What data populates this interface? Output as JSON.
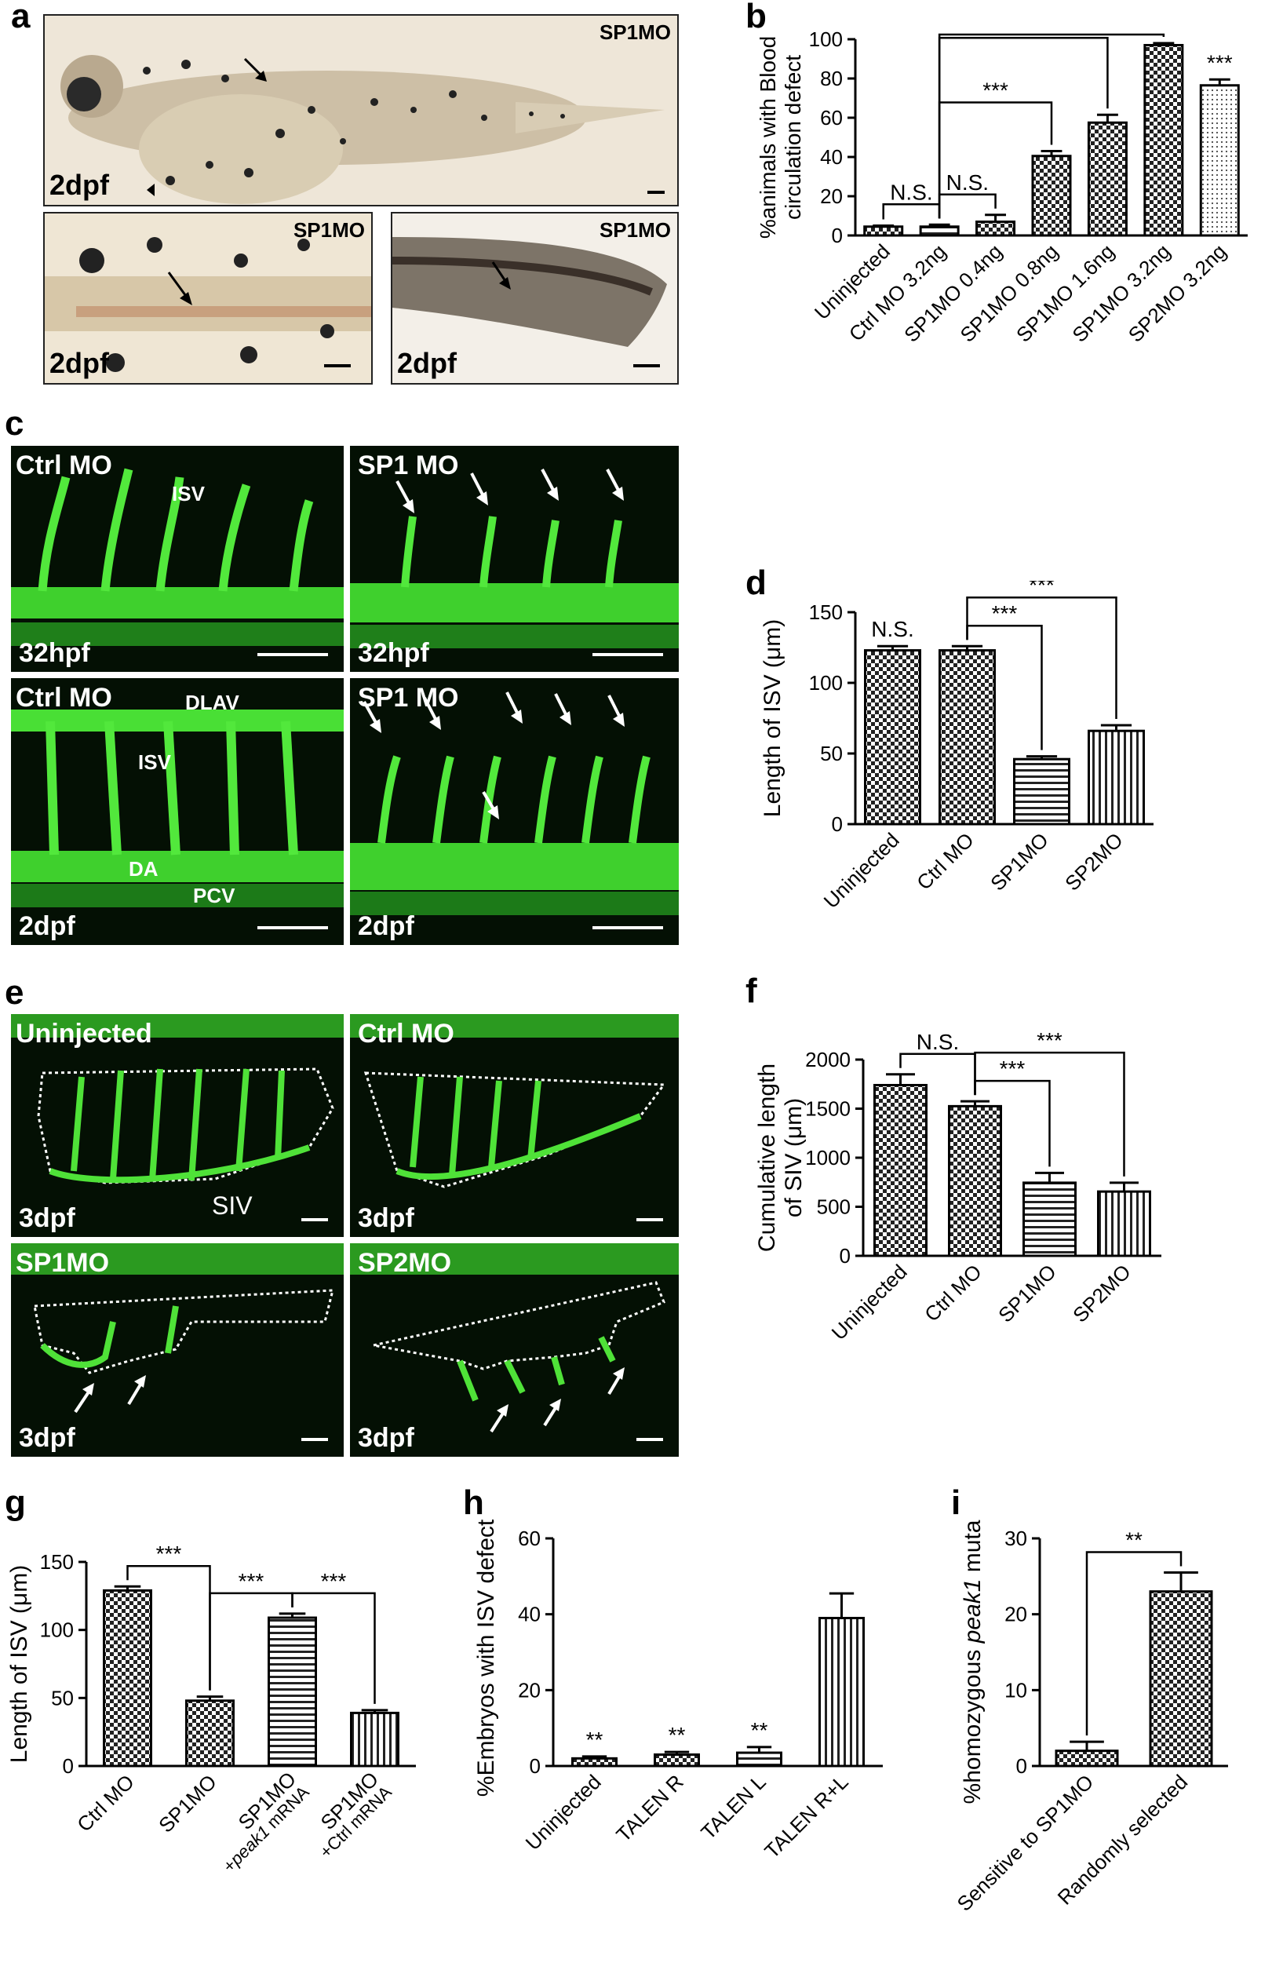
{
  "panel_labels": {
    "a": "a",
    "b": "b",
    "c": "c",
    "d": "d",
    "e": "e",
    "f": "f",
    "g": "g",
    "h": "h",
    "i": "i"
  },
  "images": {
    "a_main": {
      "tag": "SP1MO",
      "stage": "2dpf"
    },
    "a_left": {
      "tag": "SP1MO",
      "stage": "2dpf"
    },
    "a_right": {
      "tag": "SP1MO",
      "stage": "2dpf"
    },
    "c_tl": {
      "tag": "Ctrl MO",
      "stage": "32hpf",
      "annotations": [
        "ISV"
      ]
    },
    "c_tr": {
      "tag": "SP1 MO",
      "stage": "32hpf"
    },
    "c_bl": {
      "tag": "Ctrl MO",
      "stage": "2dpf",
      "annotations": [
        "DLAV",
        "ISV",
        "DA",
        "PCV"
      ]
    },
    "c_br": {
      "tag": "SP1 MO",
      "stage": "2dpf"
    },
    "e_tl": {
      "tag": "Uninjected",
      "stage": "3dpf",
      "annotations": [
        "SIV"
      ]
    },
    "e_tr": {
      "tag": "Ctrl MO",
      "stage": "3dpf"
    },
    "e_bl": {
      "tag": "SP1MO",
      "stage": "3dpf"
    },
    "e_br": {
      "tag": "SP2MO",
      "stage": "3dpf"
    }
  },
  "chart_data": [
    {
      "id": "b",
      "type": "bar",
      "ylabel": "%animals with Blood circulation defect",
      "ylim": [
        0,
        100
      ],
      "yticks": [
        0,
        20,
        40,
        60,
        80,
        100
      ],
      "categories": [
        "Uninjected",
        "Ctrl MO 3.2ng",
        "SP1MO 0.4ng",
        "SP1MO 0.8ng",
        "SP1MO 1.6ng",
        "SP1MO 3.2ng",
        "SP2MO 3.2ng"
      ],
      "values": [
        4.5,
        4.5,
        7,
        40.5,
        57.5,
        97,
        76.5
      ],
      "errors": [
        0.5,
        1,
        3.5,
        2.5,
        4,
        1,
        3
      ],
      "patterns": [
        "checker",
        "lines-h",
        "checker",
        "checker",
        "checker",
        "checker",
        "dots"
      ],
      "annotations": [
        {
          "type": "bracket",
          "from": 0,
          "to": 1,
          "label": "N.S."
        },
        {
          "type": "bracket",
          "from": 1,
          "to": 2,
          "label": "N.S."
        },
        {
          "type": "bracket",
          "from": 1,
          "to": 3,
          "label": "***"
        },
        {
          "type": "bracket",
          "from": 1,
          "to": 4,
          "label": "***"
        },
        {
          "type": "bracket",
          "from": 1,
          "to": 5,
          "label": "***"
        },
        {
          "type": "star",
          "at": 6,
          "label": "***"
        }
      ]
    },
    {
      "id": "d",
      "type": "bar",
      "ylabel": "Length of ISV (μm)",
      "ylim": [
        0,
        150
      ],
      "yticks": [
        0,
        50,
        100,
        150
      ],
      "categories": [
        "Uninjected",
        "Ctrl MO",
        "SP1MO",
        "SP2MO"
      ],
      "values": [
        123,
        123,
        46,
        66
      ],
      "errors": [
        3,
        3,
        2,
        4
      ],
      "patterns": [
        "checker",
        "checker",
        "lines-h",
        "lines-v"
      ],
      "annotations": [
        {
          "type": "star",
          "at": 0,
          "label": "N.S."
        },
        {
          "type": "bracket",
          "from": 1,
          "to": 2,
          "label": "***"
        },
        {
          "type": "bracket",
          "from": 1,
          "to": 3,
          "label": "***"
        }
      ]
    },
    {
      "id": "f",
      "type": "bar",
      "ylabel": "Cumulative length of SIV (μm)",
      "ylim": [
        0,
        2000
      ],
      "yticks": [
        0,
        500,
        1000,
        1500,
        2000
      ],
      "categories": [
        "Uninjected",
        "Ctrl MO",
        "SP1MO",
        "SP2MO"
      ],
      "values": [
        1740,
        1525,
        745,
        655
      ],
      "errors": [
        110,
        50,
        100,
        90
      ],
      "patterns": [
        "checker",
        "checker",
        "lines-h",
        "lines-v"
      ],
      "annotations": [
        {
          "type": "bracket",
          "from": 0,
          "to": 1,
          "label": "N.S."
        },
        {
          "type": "bracket",
          "from": 1,
          "to": 2,
          "label": "***"
        },
        {
          "type": "bracket",
          "from": 1,
          "to": 3,
          "label": "***"
        }
      ]
    },
    {
      "id": "g",
      "type": "bar",
      "ylabel": "Length of ISV (μm)",
      "ylim": [
        0,
        150
      ],
      "yticks": [
        0,
        50,
        100,
        150
      ],
      "categories": [
        "Ctrl MO",
        "SP1MO",
        "SP1MO +peak1 mRNA",
        "SP1MO +Ctrl mRNA"
      ],
      "values": [
        129,
        48,
        109,
        39
      ],
      "errors": [
        3,
        3,
        3,
        2
      ],
      "patterns": [
        "checker",
        "checker",
        "lines-h",
        "lines-v"
      ],
      "annotations": [
        {
          "type": "bracket",
          "from": 0,
          "to": 1,
          "label": "***"
        },
        {
          "type": "bracket",
          "from": 1,
          "to": 2,
          "label": "***"
        },
        {
          "type": "bracket",
          "from": 2,
          "to": 3,
          "label": "***"
        }
      ]
    },
    {
      "id": "h",
      "type": "bar",
      "ylabel": "%Embryos with ISV defects",
      "ylim": [
        0,
        60
      ],
      "yticks": [
        0,
        20,
        40,
        60
      ],
      "categories": [
        "Uninjected",
        "TALEN R",
        "TALEN L",
        "TALEN R+L"
      ],
      "values": [
        2,
        3,
        3.5,
        39
      ],
      "errors": [
        0.5,
        0.7,
        1.5,
        6.5
      ],
      "patterns": [
        "checker",
        "checker",
        "lines-h",
        "lines-v"
      ],
      "annotations": [
        {
          "type": "star",
          "at": 0,
          "label": "**"
        },
        {
          "type": "star",
          "at": 1,
          "label": "**"
        },
        {
          "type": "star",
          "at": 2,
          "label": "**"
        }
      ]
    },
    {
      "id": "i",
      "type": "bar",
      "ylabel": "%homozygous peak1 mutant",
      "ylim": [
        0,
        30
      ],
      "yticks": [
        0,
        10,
        20,
        30
      ],
      "categories": [
        "Sensitive to SP1MO",
        "Randomly selected"
      ],
      "values": [
        2,
        23
      ],
      "errors": [
        1.2,
        2.5
      ],
      "patterns": [
        "checker",
        "checker"
      ],
      "annotations": [
        {
          "type": "bracket",
          "from": 0,
          "to": 1,
          "label": "**"
        }
      ]
    }
  ]
}
